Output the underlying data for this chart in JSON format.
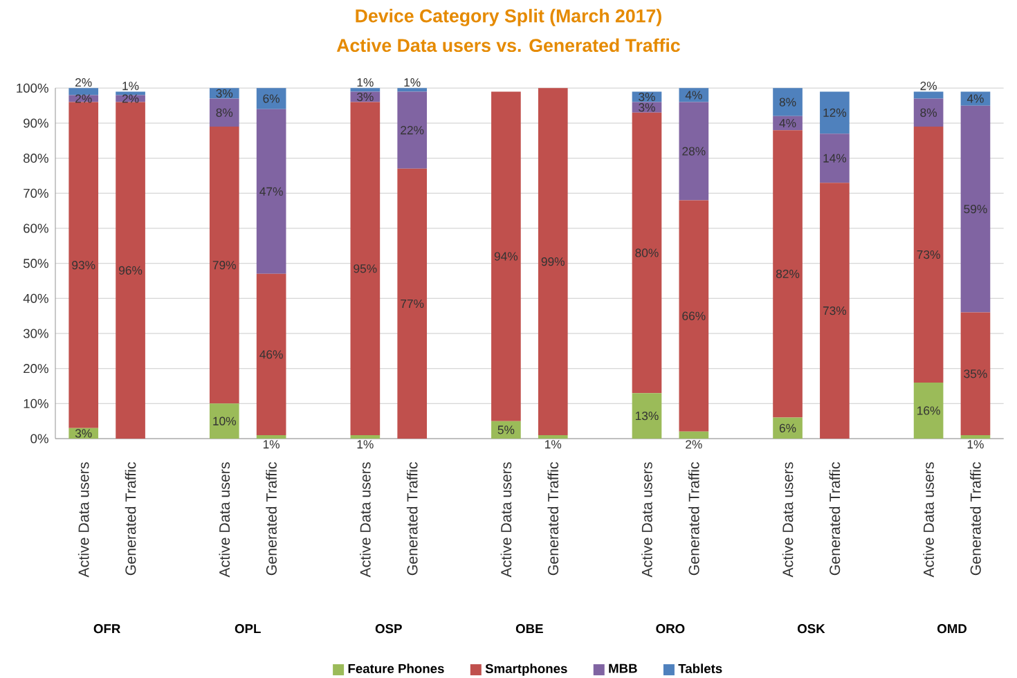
{
  "chart_data": {
    "type": "bar",
    "stacked": true,
    "title": "Device Category Split (March 2017)",
    "subtitle": "Active Data users vs. Generated Traffic",
    "categories": [
      "Active Data users",
      "Generated Traffic",
      null,
      "Active Data users",
      "Generated Traffic",
      null,
      "Active Data users",
      "Generated Traffic",
      null,
      "Active Data users",
      "Generated Traffic",
      null,
      "Active Data users",
      "Generated Traffic",
      null,
      "Active Data users",
      "Generated Traffic",
      null,
      "Active Data users",
      "Generated Traffic"
    ],
    "annotations": [
      "OFR",
      "OPL",
      "OSP",
      "OBE",
      "ORO",
      "OSK",
      "OMD"
    ],
    "series": [
      {
        "name": "Feature Phones",
        "color": "#9bbb59",
        "values": [
          3,
          null,
          null,
          10,
          1,
          null,
          1,
          null,
          null,
          5,
          1,
          null,
          13,
          2,
          null,
          6,
          null,
          null,
          16,
          1
        ],
        "value_labels": [
          "3%",
          null,
          null,
          "10%",
          "1%",
          null,
          "1%",
          null,
          null,
          "5%",
          "1%",
          null,
          "13%",
          "2%",
          null,
          "6%",
          null,
          null,
          "16%",
          "1%"
        ]
      },
      {
        "name": "Smartphones",
        "color": "#c0504d",
        "values": [
          93,
          96,
          null,
          79,
          46,
          null,
          95,
          77,
          null,
          94,
          99,
          null,
          80,
          66,
          null,
          82,
          73,
          null,
          73,
          35
        ],
        "value_labels": [
          "93%",
          "96%",
          null,
          "79%",
          "46%",
          null,
          "95%",
          "77%",
          null,
          "94%",
          "99%",
          null,
          "80%",
          "66%",
          null,
          "82%",
          "73%",
          null,
          "73%",
          "35%"
        ]
      },
      {
        "name": "MBB",
        "color": "#8064a2",
        "values": [
          2,
          2,
          null,
          8,
          47,
          null,
          3,
          22,
          null,
          null,
          null,
          null,
          3,
          28,
          null,
          4,
          14,
          null,
          8,
          59
        ],
        "value_labels": [
          "2%",
          "2%",
          null,
          "8%",
          "47%",
          null,
          "3%",
          "22%",
          null,
          null,
          null,
          null,
          "3%",
          "28%",
          null,
          "4%",
          "14%",
          null,
          "8%",
          "59%"
        ]
      },
      {
        "name": "Tablets",
        "color": "#4f81bd",
        "values": [
          2,
          1,
          null,
          3,
          6,
          null,
          1,
          1,
          null,
          null,
          null,
          null,
          3,
          4,
          null,
          8,
          12,
          null,
          2,
          4
        ],
        "value_labels": [
          "2%",
          "1%",
          null,
          "3%",
          "6%",
          null,
          "1%",
          "1%",
          null,
          null,
          null,
          null,
          "3%",
          "4%",
          null,
          "8%",
          "12%",
          null,
          "2%",
          "4%"
        ]
      }
    ],
    "ylim": [
      0,
      100
    ],
    "yticks": [
      {
        "value": 0,
        "label": "0%"
      },
      {
        "value": 10,
        "label": "10%"
      },
      {
        "value": 20,
        "label": "20%"
      },
      {
        "value": 30,
        "label": "30%"
      },
      {
        "value": 40,
        "label": "40%"
      },
      {
        "value": 50,
        "label": "50%"
      },
      {
        "value": 60,
        "label": "60%"
      },
      {
        "value": 70,
        "label": "70%"
      },
      {
        "value": 80,
        "label": "80%"
      },
      {
        "value": 90,
        "label": "90%"
      },
      {
        "value": 100,
        "label": "100%"
      }
    ],
    "grid": "y",
    "legend": "bottom"
  }
}
